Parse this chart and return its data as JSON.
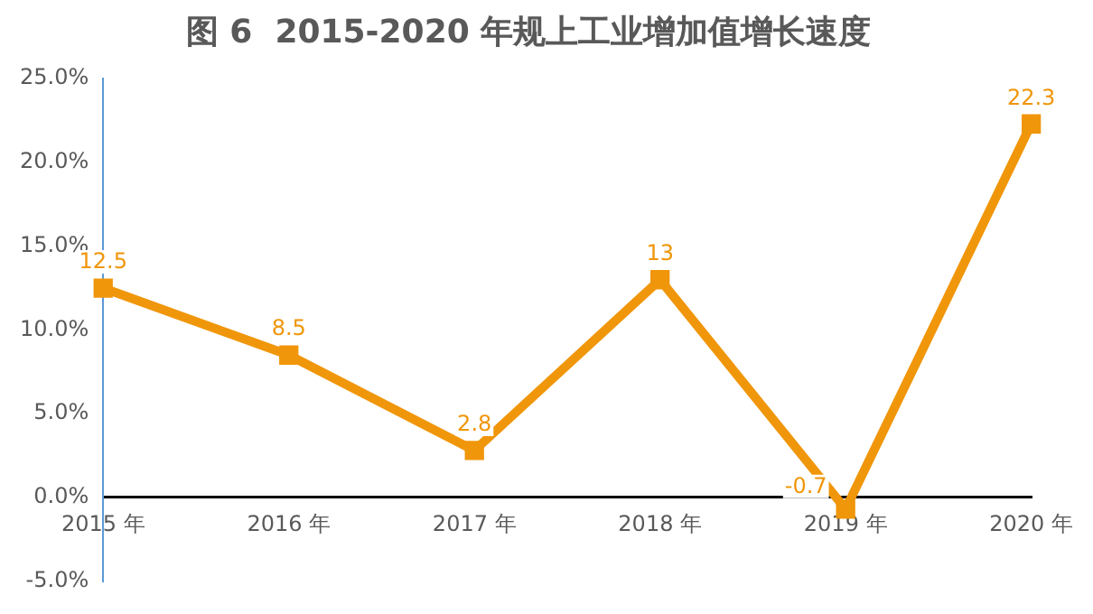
{
  "chart_data": {
    "type": "line",
    "title": "图 6  2015-2020 年规上工业增加值增长速度",
    "categories": [
      "2015 年",
      "2016 年",
      "2017 年",
      "2018 年",
      "2019 年",
      "2020 年"
    ],
    "series": [
      {
        "color": "#f0960a",
        "values": [
          12.5,
          8.5,
          2.8,
          13,
          -0.7,
          22.3
        ]
      }
    ],
    "ylim": [
      -5,
      25
    ],
    "yticks": [
      {
        "value": -5,
        "label": "-5.0%"
      },
      {
        "value": 0,
        "label": "0.0%"
      },
      {
        "value": 5,
        "label": "5.0%"
      },
      {
        "value": 10,
        "label": "10.0%"
      },
      {
        "value": 15,
        "label": "15.0%"
      },
      {
        "value": 20,
        "label": "20.0%"
      },
      {
        "value": 25,
        "label": "25.0%"
      }
    ],
    "grid": false,
    "legend": false,
    "marker": "square",
    "line_style": "solid",
    "data_labels": true
  }
}
